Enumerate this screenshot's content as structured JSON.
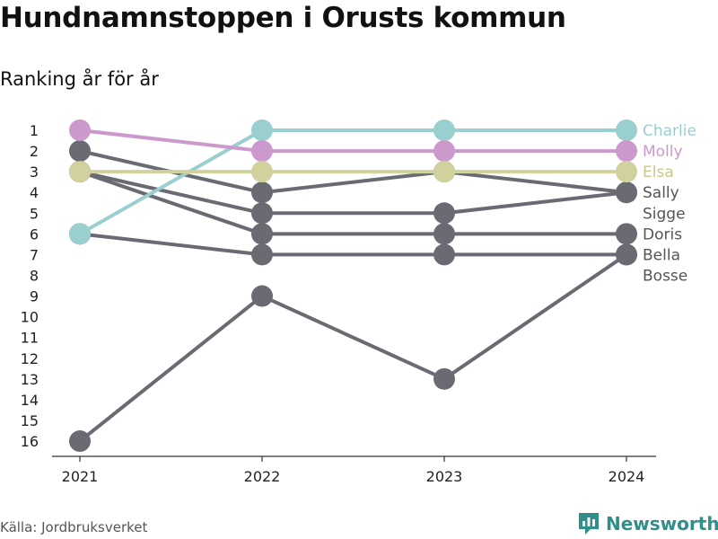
{
  "title": "Hundnamnstoppen i Orusts kommun",
  "subtitle": "Ranking år för år",
  "source": "Källa: Jordbruksverket",
  "brand": {
    "name": "Newsworthy",
    "icon": "bar-chart-logo-icon",
    "color": "#2f8f8a"
  },
  "chart_data": {
    "type": "line",
    "chart_style": "bump",
    "x": [
      "2021",
      "2022",
      "2023",
      "2024"
    ],
    "ylim": [
      1,
      16
    ],
    "y_inverted": true,
    "y_ticks": [
      "1",
      "2",
      "3",
      "4",
      "5",
      "6",
      "7",
      "8",
      "9",
      "10",
      "11",
      "12",
      "13",
      "14",
      "15",
      "16"
    ],
    "grid": false,
    "series": [
      {
        "name": "Charlie",
        "values": [
          6,
          1,
          1,
          1
        ],
        "color": "#99cfcf",
        "label_color": "#99cfcf"
      },
      {
        "name": "Molly",
        "values": [
          1,
          2,
          2,
          2
        ],
        "color": "#cc99cc",
        "label_color": "#cc99cc"
      },
      {
        "name": "Elsa",
        "values": [
          3,
          3,
          3,
          3
        ],
        "color": "#d1d19e",
        "label_color": "#c8c88a"
      },
      {
        "name": "Sally",
        "values": [
          2,
          4,
          3,
          4
        ],
        "color": "#6a6a72",
        "label_color": "#555555"
      },
      {
        "name": "Sigge",
        "values": [
          3,
          5,
          5,
          4
        ],
        "color": "#6a6a72",
        "label_color": "#555555"
      },
      {
        "name": "Doris",
        "values": [
          3,
          6,
          6,
          6
        ],
        "color": "#6a6a72",
        "label_color": "#555555"
      },
      {
        "name": "Bella",
        "values": [
          6,
          7,
          7,
          7
        ],
        "color": "#6a6a72",
        "label_color": "#555555"
      },
      {
        "name": "Bosse",
        "values": [
          16,
          9,
          13,
          7
        ],
        "color": "#6a6a72",
        "label_color": "#555555"
      }
    ],
    "end_labels": [
      "Charlie",
      "Molly",
      "Elsa",
      "Sally",
      "Sigge",
      "Doris",
      "Bella",
      "Bosse"
    ]
  }
}
